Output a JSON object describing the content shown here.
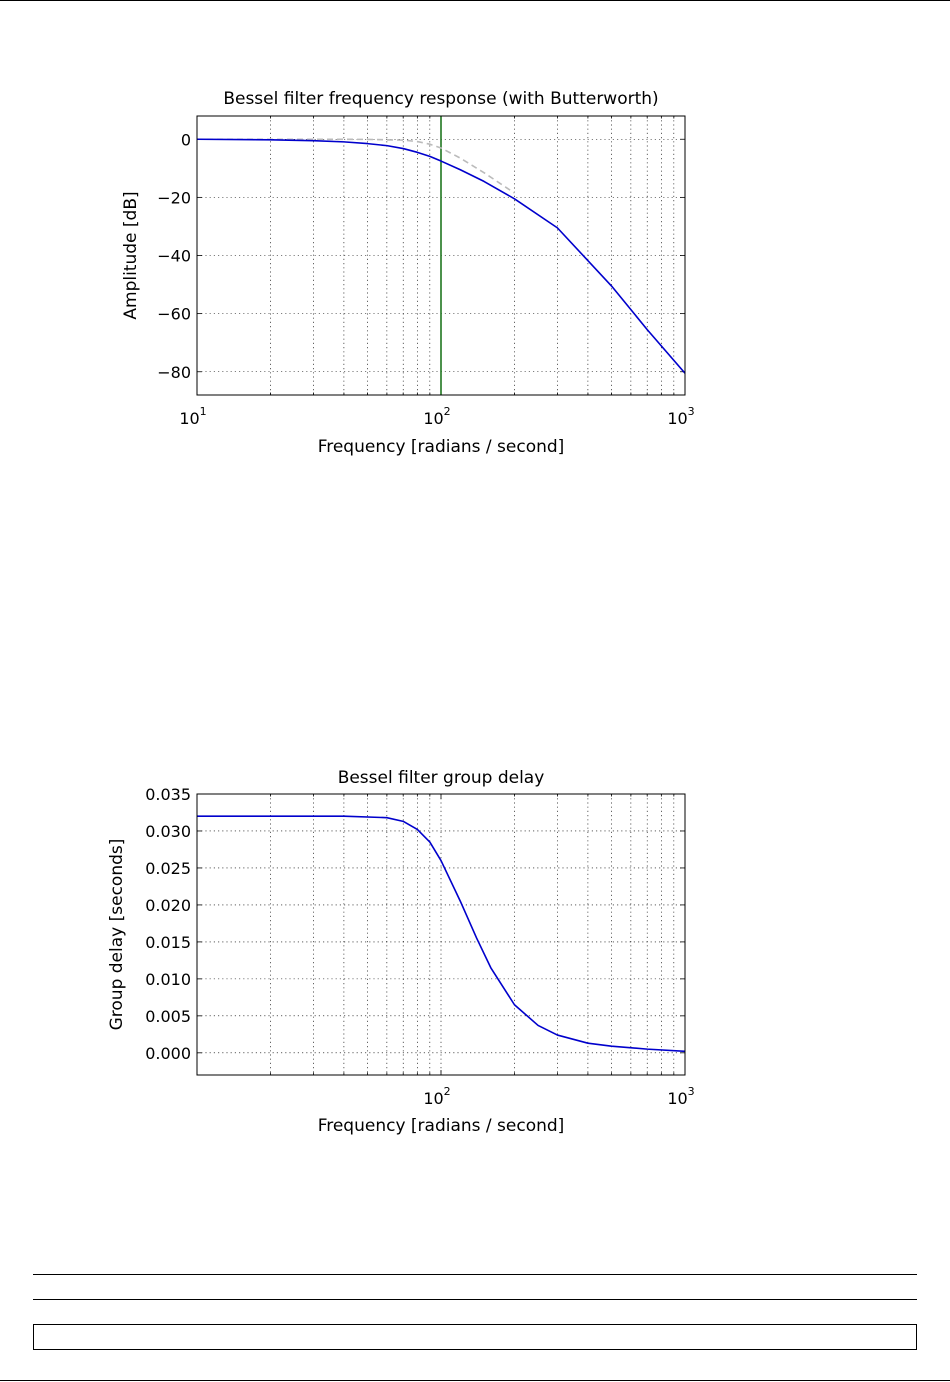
{
  "chart_data": [
    {
      "type": "line",
      "title": "Bessel filter frequency response (with Butterworth)",
      "xlabel": "Frequency [radians / second]",
      "ylabel": "Amplitude [dB]",
      "xscale": "log",
      "xlim": [
        10,
        1000
      ],
      "ylim": [
        -88,
        8
      ],
      "xticks": [
        {
          "base": "10",
          "exp": "1"
        },
        {
          "base": "10",
          "exp": "2"
        },
        {
          "base": "10",
          "exp": "3"
        }
      ],
      "yticks": [
        "0",
        "−20",
        "−40",
        "−60",
        "−80"
      ],
      "ytick_values": [
        0,
        -20,
        -40,
        -60,
        -80
      ],
      "grid": true,
      "vline": {
        "x": 100,
        "color": "#006400"
      },
      "series": [
        {
          "style": "solid",
          "color": "#0000cc",
          "x": [
            10,
            20,
            30,
            40,
            50,
            60,
            70,
            80,
            90,
            100,
            120,
            150,
            200,
            300,
            500,
            700,
            1000
          ],
          "y": [
            0.0,
            -0.2,
            -0.5,
            -0.9,
            -1.5,
            -2.2,
            -3.2,
            -4.5,
            -5.9,
            -7.5,
            -10.5,
            -14.5,
            -20.5,
            -30.5,
            -50.5,
            -65.5,
            -80.5
          ]
        },
        {
          "style": "dashed",
          "color": "#bbbbbb",
          "x": [
            10,
            20,
            30,
            50,
            70,
            80,
            90,
            100,
            120,
            150,
            200
          ],
          "y": [
            0.0,
            0.0,
            0.0,
            -0.05,
            -0.3,
            -0.8,
            -1.7,
            -3.0,
            -6.5,
            -11.5,
            -18.5
          ]
        }
      ]
    },
    {
      "type": "line",
      "title": "Bessel filter group delay",
      "xlabel": "Frequency [radians / second]",
      "ylabel": "Group delay [seconds]",
      "xscale": "log",
      "xlim": [
        10,
        1000
      ],
      "ylim": [
        -0.003,
        0.035
      ],
      "xticks": [
        {
          "base": "10",
          "exp": "2"
        },
        {
          "base": "10",
          "exp": "3"
        }
      ],
      "xtick_values": [
        100,
        1000
      ],
      "yticks": [
        "0.000",
        "0.005",
        "0.010",
        "0.015",
        "0.020",
        "0.025",
        "0.030",
        "0.035"
      ],
      "ytick_values": [
        0,
        0.005,
        0.01,
        0.015,
        0.02,
        0.025,
        0.03,
        0.035
      ],
      "grid": true,
      "series": [
        {
          "style": "solid",
          "color": "#0000cc",
          "x": [
            10,
            20,
            40,
            60,
            70,
            80,
            90,
            100,
            120,
            140,
            160,
            200,
            250,
            300,
            400,
            500,
            700,
            1000
          ],
          "y": [
            0.032,
            0.032,
            0.032,
            0.0318,
            0.0313,
            0.0302,
            0.0285,
            0.026,
            0.0205,
            0.0155,
            0.0115,
            0.0065,
            0.0037,
            0.0024,
            0.0013,
            0.0009,
            0.0005,
            0.0002
          ]
        }
      ]
    }
  ]
}
